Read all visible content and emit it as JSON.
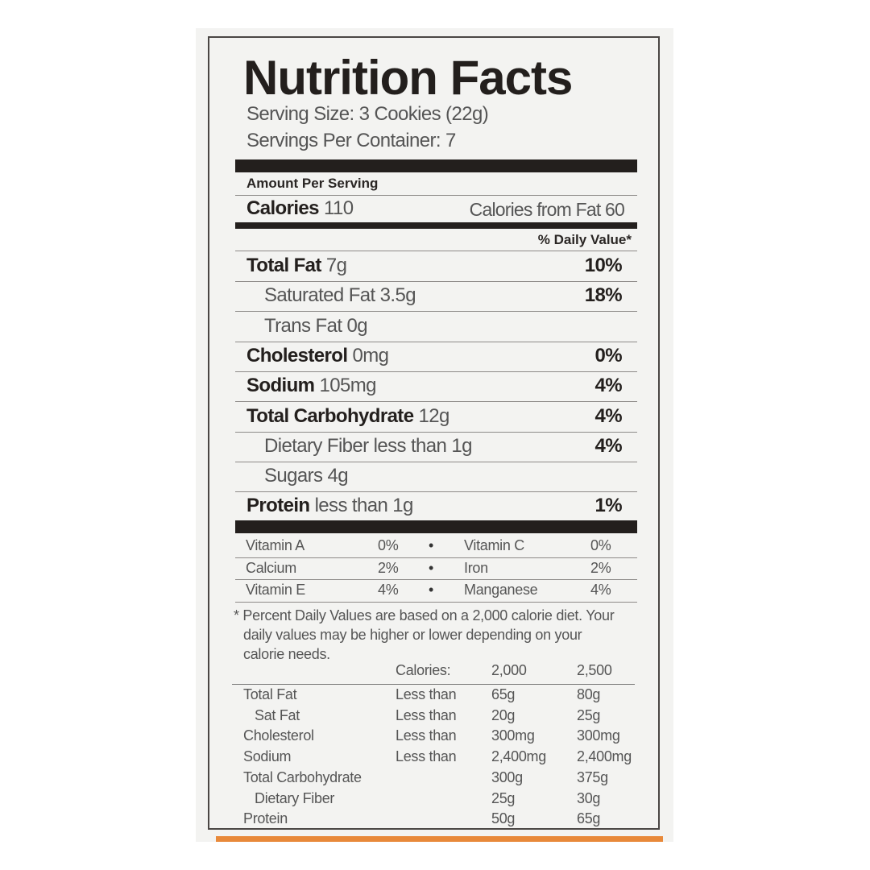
{
  "title": "Nutrition Facts",
  "serving_size": "Serving Size: 3 Cookies (22g)",
  "servings_per_container": "Servings Per Container: 7",
  "amount_per_serving": "Amount Per Serving",
  "calories": {
    "label": "Calories",
    "value": "110",
    "from_fat": "Calories from Fat 60"
  },
  "daily_value_header": "% Daily Value*",
  "nutrients": [
    {
      "name": "Total Fat",
      "amount": "7g",
      "dv": "10%",
      "bold": true,
      "indent": false
    },
    {
      "name": "Saturated Fat 3.5g",
      "amount": "",
      "dv": "18%",
      "bold": false,
      "indent": true
    },
    {
      "name": "Trans Fat 0g",
      "amount": "",
      "dv": "",
      "bold": false,
      "indent": true
    },
    {
      "name": "Cholesterol",
      "amount": "0mg",
      "dv": "0%",
      "bold": true,
      "indent": false
    },
    {
      "name": "Sodium",
      "amount": "105mg",
      "dv": "4%",
      "bold": true,
      "indent": false
    },
    {
      "name": "Total Carbohydrate",
      "amount": "12g",
      "dv": "4%",
      "bold": true,
      "indent": false
    },
    {
      "name": "Dietary Fiber less than 1g",
      "amount": "",
      "dv": "4%",
      "bold": false,
      "indent": true
    },
    {
      "name": "Sugars 4g",
      "amount": "",
      "dv": "",
      "bold": false,
      "indent": true
    },
    {
      "name": "Protein",
      "amount": "less than 1g",
      "dv": "1%",
      "bold": true,
      "indent": false
    }
  ],
  "vitamins": [
    {
      "a": "Vitamin A",
      "av": "0%",
      "b": "Vitamin C",
      "bv": "0%"
    },
    {
      "a": "Calcium",
      "av": "2%",
      "b": "Iron",
      "bv": "2%"
    },
    {
      "a": "Vitamin E",
      "av": "4%",
      "b": "Manganese",
      "bv": "4%"
    }
  ],
  "bullet": "•",
  "footnote": [
    "* Percent Daily Values are based on a 2,000 calorie diet. Your",
    "daily values may be higher  or lower depending on your",
    "calorie needs."
  ],
  "dv_table": {
    "header": [
      "",
      "Calories:",
      "2,000",
      "2,500"
    ],
    "rows": [
      [
        "Total Fat",
        "Less than",
        "65g",
        "80g"
      ],
      [
        "  Sat Fat",
        "Less than",
        "20g",
        "25g"
      ],
      [
        "Cholesterol",
        "Less than",
        "300mg",
        "300mg"
      ],
      [
        "Sodium",
        "Less than",
        "2,400mg",
        "2,400mg"
      ],
      [
        "Total Carbohydrate",
        "",
        "300g",
        "375g"
      ],
      [
        "  Dietary Fiber",
        "",
        "25g",
        "30g"
      ],
      [
        "Protein",
        "",
        "50g",
        "65g"
      ]
    ]
  },
  "colors": {
    "accent_strip": "#e8893a",
    "ink": "#231f1d"
  }
}
